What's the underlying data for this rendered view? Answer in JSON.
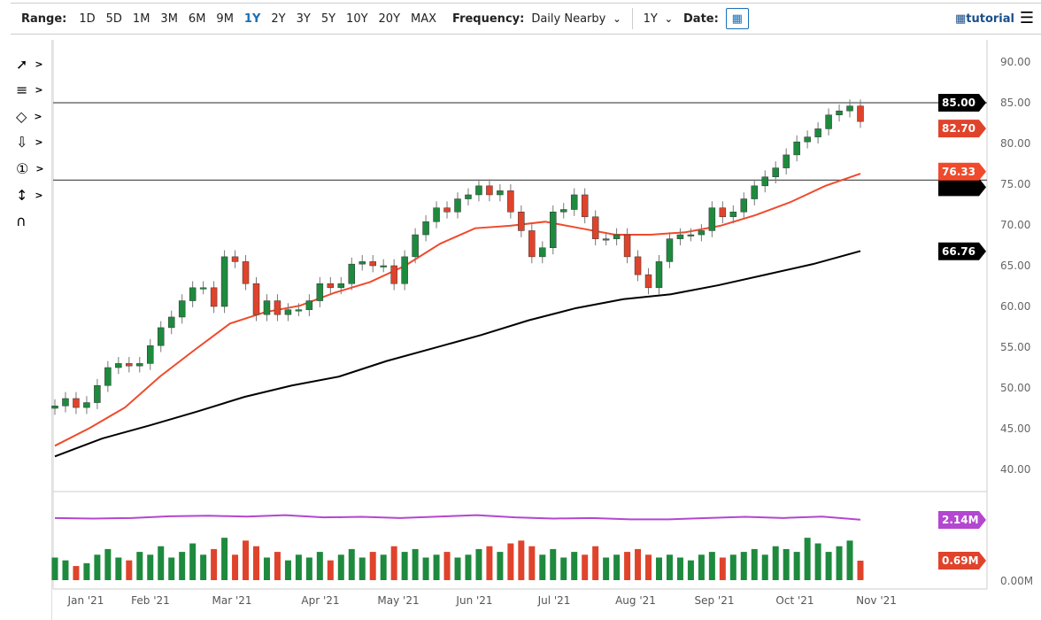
{
  "toolbar": {
    "range_label": "Range:",
    "ranges": [
      "1D",
      "5D",
      "1M",
      "3M",
      "6M",
      "9M",
      "1Y",
      "2Y",
      "3Y",
      "5Y",
      "10Y",
      "20Y",
      "MAX"
    ],
    "active_range": "1Y",
    "frequency_label": "Frequency:",
    "frequency_value": "Daily Nearby",
    "period_value": "1Y",
    "date_label": "Date:",
    "tutorial_label": "tutorial"
  },
  "tools": [
    "line-draw-icon",
    "fib-icon",
    "shape-icon",
    "arrow-down-icon",
    "number-marker-icon",
    "measure-icon",
    "magnet-icon"
  ],
  "colors": {
    "up": "#1e8a3e",
    "down": "#e0432b",
    "ma50": "#f04a2c",
    "ma200": "#000000",
    "volume_avg": "#b347d0",
    "accent": "#1a6fb5"
  },
  "chart_data": {
    "type": "candlestick",
    "ylim": [
      38,
      92
    ],
    "y_ticks": [
      "40.00",
      "45.00",
      "50.00",
      "55.00",
      "60.00",
      "65.00",
      "70.00",
      "75.00",
      "80.00",
      "85.00",
      "90.00"
    ],
    "x_ticks": [
      "Jan '21",
      "Feb '21",
      "Mar '21",
      "Apr '21",
      "May '21",
      "Jun '21",
      "Jul '21",
      "Aug '21",
      "Sep '21",
      "Oct '21",
      "Nov '21"
    ],
    "closes": [
      47.8,
      48.7,
      47.6,
      48.2,
      50.3,
      52.5,
      53,
      52.7,
      53,
      55.2,
      57.4,
      58.7,
      60.7,
      62.3,
      62.3,
      60,
      66.1,
      65.5,
      62.8,
      59,
      60.7,
      59,
      59.6,
      59.6,
      60.7,
      62.8,
      62.3,
      62.8,
      65.2,
      65.5,
      65,
      65,
      62.8,
      66.1,
      68.8,
      70.4,
      72.1,
      71.6,
      73.2,
      73.7,
      74.8,
      73.7,
      74.2,
      71.6,
      69.3,
      66.1,
      67.2,
      71.6,
      71.9,
      73.7,
      71,
      68.3,
      68.3,
      68.8,
      66.1,
      63.9,
      62.3,
      65.5,
      68.3,
      68.8,
      68.8,
      69.3,
      72.1,
      71,
      71.6,
      73.2,
      74.8,
      75.9,
      77,
      78.6,
      80.2,
      80.8,
      81.8,
      83.5,
      84,
      84.6,
      82.7
    ],
    "ma50": [
      42.9,
      45.1,
      47.6,
      51.4,
      54.7,
      57.9,
      59.3,
      60.1,
      61.7,
      63,
      65,
      67.7,
      69.6,
      69.9,
      70.4,
      69.6,
      68.8,
      68.8,
      69.1,
      69.9,
      71.2,
      72.8,
      74.8,
      76.3
    ],
    "ma200": [
      41.6,
      43.8,
      45.4,
      47.1,
      48.9,
      50.3,
      51.4,
      53.3,
      54.9,
      56.5,
      58.3,
      59.8,
      60.9,
      61.5,
      62.6,
      63.9,
      65.2,
      66.8
    ],
    "volume_m": [
      0.8,
      0.7,
      0.5,
      0.6,
      0.9,
      1.1,
      0.8,
      0.7,
      1.0,
      0.9,
      1.2,
      0.8,
      1.0,
      1.3,
      0.9,
      1.1,
      1.5,
      0.9,
      1.4,
      1.2,
      0.8,
      1.0,
      0.7,
      0.9,
      0.8,
      1.0,
      0.7,
      0.9,
      1.1,
      0.8,
      1.0,
      0.9,
      1.2,
      1.0,
      1.1,
      0.8,
      0.9,
      1.0,
      0.8,
      0.9,
      1.1,
      1.2,
      1.0,
      1.3,
      1.4,
      1.2,
      0.9,
      1.1,
      0.8,
      1.0,
      0.9,
      1.2,
      0.8,
      0.9,
      1.0,
      1.1,
      0.9,
      0.8,
      0.9,
      0.8,
      0.7,
      0.9,
      1.0,
      0.8,
      0.9,
      1.0,
      1.1,
      0.9,
      1.2,
      1.1,
      1.0,
      1.5,
      1.3,
      1.0,
      1.2,
      1.4,
      0.69
    ],
    "volume_avg_m": [
      2.2,
      2.18,
      2.2,
      2.26,
      2.28,
      2.25,
      2.3,
      2.22,
      2.24,
      2.2,
      2.25,
      2.3,
      2.22,
      2.18,
      2.2,
      2.15,
      2.15,
      2.2,
      2.24,
      2.2,
      2.25,
      2.14
    ],
    "volume_ticks": [
      "0.00M"
    ],
    "h_lines": [
      85.0,
      75.5
    ],
    "price_tags": {
      "h_line": "85.00",
      "last": "82.70",
      "ma50": "76.33",
      "ma200": "66.76",
      "volume_avg": "2.14M",
      "volume_last": "0.69M"
    }
  }
}
